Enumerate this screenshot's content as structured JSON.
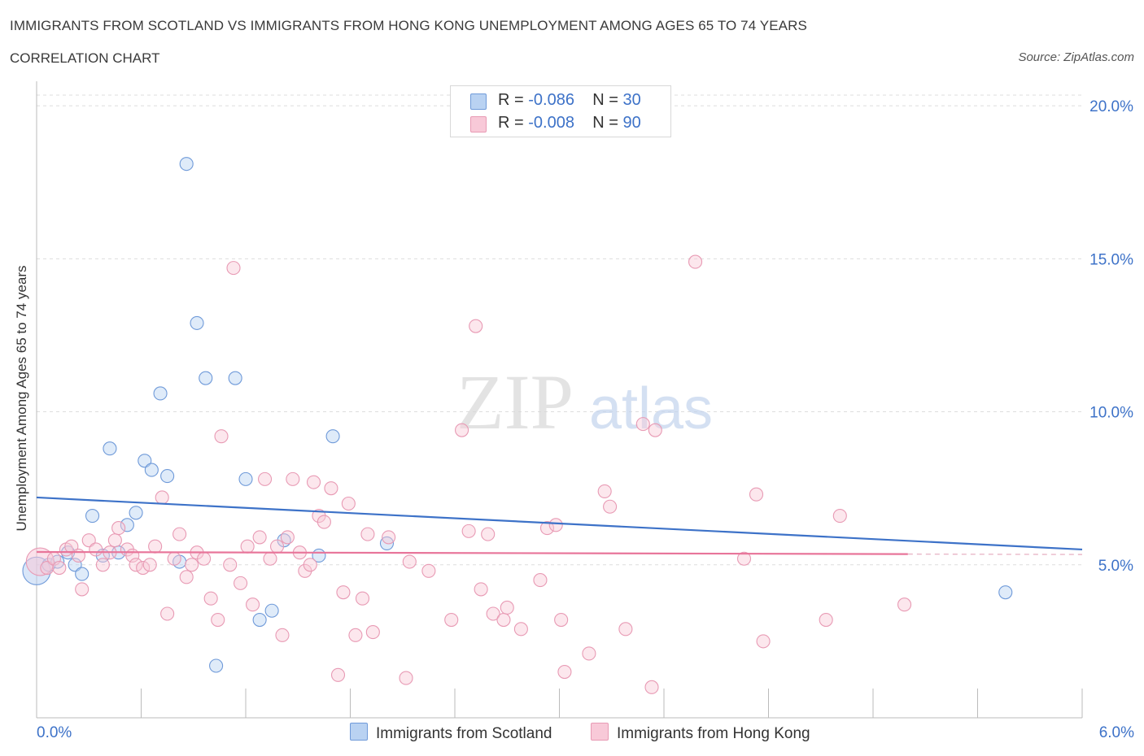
{
  "header": {
    "title": "IMMIGRANTS FROM SCOTLAND VS IMMIGRANTS FROM HONG KONG UNEMPLOYMENT AMONG AGES 65 TO 74 YEARS",
    "subtitle": "CORRELATION CHART",
    "source": "Source: ZipAtlas.com"
  },
  "watermark": {
    "zip": "ZIP",
    "atlas": "atlas"
  },
  "stats_legend": {
    "rows": [
      {
        "r_label": "R =",
        "r_value": "-0.086",
        "n_label": "N =",
        "n_value": "30",
        "color": "#aecbf0"
      },
      {
        "r_label": "R =",
        "r_value": "-0.008",
        "n_label": "N =",
        "n_value": "90",
        "color": "#f6bfd0"
      }
    ]
  },
  "legend": {
    "items": [
      {
        "label": "Immigrants from Scotland",
        "color": "#aecbf0"
      },
      {
        "label": "Immigrants from Hong Kong",
        "color": "#f6bfd0"
      }
    ]
  },
  "chart_data": {
    "type": "scatter",
    "title": "IMMIGRANTS FROM SCOTLAND VS IMMIGRANTS FROM HONG KONG UNEMPLOYMENT AMONG AGES 65 TO 74 YEARS",
    "subtitle": "CORRELATION CHART",
    "xlabel": "",
    "ylabel": "Unemployment Among Ages 65 to 74 years",
    "xlim": [
      0,
      6
    ],
    "ylim": [
      0,
      20.8
    ],
    "x_tick_labels": [
      "0.0%",
      "6.0%"
    ],
    "y_tick_labels": [
      "5.0%",
      "10.0%",
      "15.0%",
      "20.0%"
    ],
    "y_ticks": [
      5,
      10,
      15,
      20
    ],
    "grid": true,
    "legend_position": "bottom",
    "colors": {
      "scotland": "#3d72c8",
      "hongkong": "#e8759a"
    },
    "series": [
      {
        "name": "Immigrants from Scotland",
        "r": -0.086,
        "n": 30,
        "trend": {
          "x": [
            0,
            6
          ],
          "y": [
            7.2,
            5.5
          ]
        },
        "points": [
          {
            "x": 0.0,
            "y": 4.8,
            "big": true
          },
          {
            "x": 0.07,
            "y": 5.0
          },
          {
            "x": 0.12,
            "y": 5.1
          },
          {
            "x": 0.18,
            "y": 5.4
          },
          {
            "x": 0.22,
            "y": 5.0
          },
          {
            "x": 0.26,
            "y": 4.7
          },
          {
            "x": 0.32,
            "y": 6.6
          },
          {
            "x": 0.38,
            "y": 5.3
          },
          {
            "x": 0.42,
            "y": 8.8
          },
          {
            "x": 0.47,
            "y": 5.4
          },
          {
            "x": 0.52,
            "y": 6.3
          },
          {
            "x": 0.57,
            "y": 6.7
          },
          {
            "x": 0.62,
            "y": 8.4
          },
          {
            "x": 0.66,
            "y": 8.1
          },
          {
            "x": 0.71,
            "y": 10.6
          },
          {
            "x": 0.75,
            "y": 7.9
          },
          {
            "x": 0.82,
            "y": 5.1
          },
          {
            "x": 0.86,
            "y": 18.1
          },
          {
            "x": 0.92,
            "y": 12.9
          },
          {
            "x": 0.97,
            "y": 11.1
          },
          {
            "x": 1.03,
            "y": 1.7
          },
          {
            "x": 1.14,
            "y": 11.1
          },
          {
            "x": 1.2,
            "y": 7.8
          },
          {
            "x": 1.28,
            "y": 3.2
          },
          {
            "x": 1.35,
            "y": 3.5
          },
          {
            "x": 1.42,
            "y": 5.8
          },
          {
            "x": 1.62,
            "y": 5.3
          },
          {
            "x": 1.7,
            "y": 9.2
          },
          {
            "x": 2.01,
            "y": 5.7
          },
          {
            "x": 5.56,
            "y": 4.1
          }
        ]
      },
      {
        "name": "Immigrants from Hong Kong",
        "r": -0.008,
        "n": 90,
        "trend": {
          "x": [
            0,
            5.0
          ],
          "y": [
            5.42,
            5.35
          ]
        },
        "points": [
          {
            "x": 0.02,
            "y": 5.1,
            "big": true
          },
          {
            "x": 0.06,
            "y": 4.9
          },
          {
            "x": 0.1,
            "y": 5.2
          },
          {
            "x": 0.13,
            "y": 4.9
          },
          {
            "x": 0.17,
            "y": 5.5
          },
          {
            "x": 0.2,
            "y": 5.6
          },
          {
            "x": 0.24,
            "y": 5.3
          },
          {
            "x": 0.26,
            "y": 4.2
          },
          {
            "x": 0.3,
            "y": 5.8
          },
          {
            "x": 0.34,
            "y": 5.5
          },
          {
            "x": 0.38,
            "y": 5.0
          },
          {
            "x": 0.42,
            "y": 5.4
          },
          {
            "x": 0.45,
            "y": 5.8
          },
          {
            "x": 0.47,
            "y": 6.2
          },
          {
            "x": 0.52,
            "y": 5.5
          },
          {
            "x": 0.55,
            "y": 5.3
          },
          {
            "x": 0.57,
            "y": 5.0
          },
          {
            "x": 0.61,
            "y": 4.9
          },
          {
            "x": 0.65,
            "y": 5.0
          },
          {
            "x": 0.68,
            "y": 5.6
          },
          {
            "x": 0.72,
            "y": 7.2
          },
          {
            "x": 0.75,
            "y": 3.4
          },
          {
            "x": 0.79,
            "y": 5.2
          },
          {
            "x": 0.82,
            "y": 6.0
          },
          {
            "x": 0.86,
            "y": 4.6
          },
          {
            "x": 0.89,
            "y": 5.0
          },
          {
            "x": 0.92,
            "y": 5.4
          },
          {
            "x": 0.96,
            "y": 5.2
          },
          {
            "x": 1.0,
            "y": 3.9
          },
          {
            "x": 1.04,
            "y": 3.2
          },
          {
            "x": 1.06,
            "y": 9.2
          },
          {
            "x": 1.11,
            "y": 5.0
          },
          {
            "x": 1.13,
            "y": 14.7
          },
          {
            "x": 1.17,
            "y": 4.4
          },
          {
            "x": 1.21,
            "y": 5.6
          },
          {
            "x": 1.24,
            "y": 3.7
          },
          {
            "x": 1.28,
            "y": 5.9
          },
          {
            "x": 1.31,
            "y": 7.8
          },
          {
            "x": 1.34,
            "y": 5.2
          },
          {
            "x": 1.38,
            "y": 5.6
          },
          {
            "x": 1.41,
            "y": 2.7
          },
          {
            "x": 1.44,
            "y": 5.9
          },
          {
            "x": 1.47,
            "y": 7.8
          },
          {
            "x": 1.51,
            "y": 5.4
          },
          {
            "x": 1.54,
            "y": 4.8
          },
          {
            "x": 1.57,
            "y": 5.0
          },
          {
            "x": 1.59,
            "y": 7.7
          },
          {
            "x": 1.62,
            "y": 6.6
          },
          {
            "x": 1.65,
            "y": 6.4
          },
          {
            "x": 1.69,
            "y": 7.5
          },
          {
            "x": 1.73,
            "y": 1.4
          },
          {
            "x": 1.76,
            "y": 4.1
          },
          {
            "x": 1.79,
            "y": 7.0
          },
          {
            "x": 1.83,
            "y": 2.7
          },
          {
            "x": 1.87,
            "y": 3.9
          },
          {
            "x": 1.9,
            "y": 6.0
          },
          {
            "x": 1.93,
            "y": 2.8
          },
          {
            "x": 2.02,
            "y": 5.9
          },
          {
            "x": 2.12,
            "y": 1.3
          },
          {
            "x": 2.14,
            "y": 5.1
          },
          {
            "x": 2.25,
            "y": 4.8
          },
          {
            "x": 2.38,
            "y": 3.2
          },
          {
            "x": 2.44,
            "y": 9.4
          },
          {
            "x": 2.48,
            "y": 6.1
          },
          {
            "x": 2.52,
            "y": 12.8
          },
          {
            "x": 2.55,
            "y": 4.2
          },
          {
            "x": 2.59,
            "y": 6.0
          },
          {
            "x": 2.62,
            "y": 3.4
          },
          {
            "x": 2.68,
            "y": 3.2
          },
          {
            "x": 2.7,
            "y": 3.6
          },
          {
            "x": 2.78,
            "y": 2.9
          },
          {
            "x": 2.89,
            "y": 4.5
          },
          {
            "x": 2.93,
            "y": 6.2
          },
          {
            "x": 2.98,
            "y": 6.3
          },
          {
            "x": 3.01,
            "y": 3.2
          },
          {
            "x": 3.03,
            "y": 1.5
          },
          {
            "x": 3.17,
            "y": 2.1
          },
          {
            "x": 3.26,
            "y": 7.4
          },
          {
            "x": 3.29,
            "y": 6.9
          },
          {
            "x": 3.38,
            "y": 2.9
          },
          {
            "x": 3.48,
            "y": 9.6
          },
          {
            "x": 3.53,
            "y": 1.0
          },
          {
            "x": 3.55,
            "y": 9.4
          },
          {
            "x": 3.78,
            "y": 14.9
          },
          {
            "x": 4.06,
            "y": 5.2
          },
          {
            "x": 4.13,
            "y": 7.3
          },
          {
            "x": 4.17,
            "y": 2.5
          },
          {
            "x": 4.53,
            "y": 3.2
          },
          {
            "x": 4.61,
            "y": 6.6
          },
          {
            "x": 4.98,
            "y": 3.7
          }
        ]
      }
    ]
  }
}
